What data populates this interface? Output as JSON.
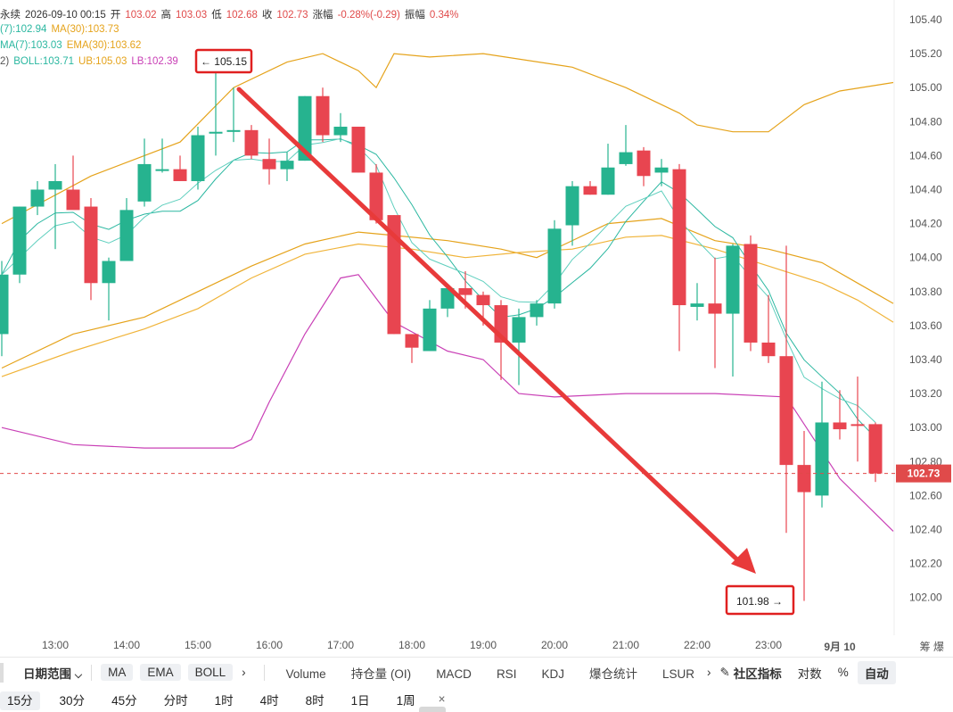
{
  "header": {
    "line1": [
      {
        "text": "永续",
        "color": "#333333"
      },
      {
        "text": "2026-09-10 00:15",
        "color": "#333333"
      },
      {
        "text": "开",
        "color": "#333333"
      },
      {
        "text": "103.02",
        "color": "#e04a4a"
      },
      {
        "text": "高",
        "color": "#333333"
      },
      {
        "text": "103.03",
        "color": "#e04a4a"
      },
      {
        "text": "低",
        "color": "#333333"
      },
      {
        "text": "102.68",
        "color": "#e04a4a"
      },
      {
        "text": "收",
        "color": "#333333"
      },
      {
        "text": "102.73",
        "color": "#e04a4a"
      },
      {
        "text": "涨幅",
        "color": "#333333"
      },
      {
        "text": "-0.28%(-0.29)",
        "color": "#e04a4a"
      },
      {
        "text": "振幅",
        "color": "#333333"
      },
      {
        "text": "0.34%",
        "color": "#e04a4a"
      }
    ],
    "line2": [
      {
        "text": "(7):102.94",
        "color": "#2ab7a0"
      },
      {
        "text": "MA(30):103.73",
        "color": "#e5a31b"
      }
    ],
    "line3": [
      {
        "text": "MA(7):103.03",
        "color": "#2ab7a0"
      },
      {
        "text": "EMA(30):103.62",
        "color": "#e5a31b"
      }
    ],
    "line4": [
      {
        "text": "2)",
        "color": "#555555"
      },
      {
        "text": "BOLL:103.71",
        "color": "#2ab7a0"
      },
      {
        "text": "UB:105.03",
        "color": "#e5a31b"
      },
      {
        "text": "LB:102.39",
        "color": "#c940b6"
      }
    ]
  },
  "chart_data": {
    "type": "candlestick",
    "x_ticks": [
      "13:00",
      "14:00",
      "15:00",
      "16:00",
      "17:00",
      "18:00",
      "19:00",
      "20:00",
      "21:00",
      "22:00",
      "23:00",
      "9月 10"
    ],
    "y_ticks": [
      "105.40",
      "105.20",
      "105.00",
      "104.80",
      "104.60",
      "104.40",
      "104.20",
      "104.00",
      "103.80",
      "103.60",
      "103.40",
      "103.20",
      "103.00",
      "102.80",
      "102.60",
      "102.40",
      "102.20",
      "102.00"
    ],
    "ylim": [
      101.8,
      105.5
    ],
    "candles": [
      {
        "o": 103.55,
        "h": 103.98,
        "l": 103.42,
        "c": 103.9
      },
      {
        "o": 103.9,
        "h": 104.3,
        "l": 103.85,
        "c": 104.3
      },
      {
        "o": 104.3,
        "h": 104.45,
        "l": 104.25,
        "c": 104.4
      },
      {
        "o": 104.4,
        "h": 104.55,
        "l": 104.05,
        "c": 104.45
      },
      {
        "o": 104.4,
        "h": 104.6,
        "l": 104.3,
        "c": 104.28
      },
      {
        "o": 104.3,
        "h": 104.35,
        "l": 103.75,
        "c": 103.85
      },
      {
        "o": 103.85,
        "h": 104.0,
        "l": 103.63,
        "c": 103.98
      },
      {
        "o": 103.98,
        "h": 104.35,
        "l": 103.98,
        "c": 104.28
      },
      {
        "o": 104.33,
        "h": 104.7,
        "l": 104.3,
        "c": 104.55
      },
      {
        "o": 104.52,
        "h": 104.7,
        "l": 104.5,
        "c": 104.52
      },
      {
        "o": 104.52,
        "h": 104.6,
        "l": 104.45,
        "c": 104.45
      },
      {
        "o": 104.45,
        "h": 104.77,
        "l": 104.4,
        "c": 104.72
      },
      {
        "o": 104.74,
        "h": 105.15,
        "l": 104.6,
        "c": 104.74
      },
      {
        "o": 104.75,
        "h": 105.0,
        "l": 104.68,
        "c": 104.75
      },
      {
        "o": 104.75,
        "h": 104.78,
        "l": 104.58,
        "c": 104.6
      },
      {
        "o": 104.58,
        "h": 104.7,
        "l": 104.43,
        "c": 104.52
      },
      {
        "o": 104.52,
        "h": 104.62,
        "l": 104.45,
        "c": 104.57
      },
      {
        "o": 104.57,
        "h": 104.95,
        "l": 104.57,
        "c": 104.95
      },
      {
        "o": 104.95,
        "h": 105.0,
        "l": 104.68,
        "c": 104.72
      },
      {
        "o": 104.72,
        "h": 104.85,
        "l": 104.68,
        "c": 104.77
      },
      {
        "o": 104.77,
        "h": 104.77,
        "l": 104.5,
        "c": 104.5
      },
      {
        "o": 104.5,
        "h": 104.55,
        "l": 104.2,
        "c": 104.22
      },
      {
        "o": 104.25,
        "h": 104.25,
        "l": 103.55,
        "c": 103.55
      },
      {
        "o": 103.55,
        "h": 103.55,
        "l": 103.38,
        "c": 103.47
      },
      {
        "o": 103.45,
        "h": 103.75,
        "l": 103.45,
        "c": 103.7
      },
      {
        "o": 103.7,
        "h": 103.83,
        "l": 103.65,
        "c": 103.82
      },
      {
        "o": 103.82,
        "h": 103.92,
        "l": 103.7,
        "c": 103.78
      },
      {
        "o": 103.78,
        "h": 103.8,
        "l": 103.6,
        "c": 103.72
      },
      {
        "o": 103.72,
        "h": 103.75,
        "l": 103.28,
        "c": 103.5
      },
      {
        "o": 103.5,
        "h": 103.7,
        "l": 103.25,
        "c": 103.65
      },
      {
        "o": 103.65,
        "h": 103.75,
        "l": 103.6,
        "c": 103.73
      },
      {
        "o": 103.73,
        "h": 104.22,
        "l": 103.7,
        "c": 104.17
      },
      {
        "o": 104.19,
        "h": 104.45,
        "l": 104.07,
        "c": 104.42
      },
      {
        "o": 104.42,
        "h": 104.45,
        "l": 104.37,
        "c": 104.37
      },
      {
        "o": 104.37,
        "h": 104.67,
        "l": 104.37,
        "c": 104.53
      },
      {
        "o": 104.55,
        "h": 104.78,
        "l": 104.54,
        "c": 104.62
      },
      {
        "o": 104.63,
        "h": 104.65,
        "l": 104.42,
        "c": 104.48
      },
      {
        "o": 104.5,
        "h": 104.58,
        "l": 104.42,
        "c": 104.53
      },
      {
        "o": 104.52,
        "h": 104.55,
        "l": 103.45,
        "c": 103.72
      },
      {
        "o": 103.71,
        "h": 103.85,
        "l": 103.63,
        "c": 103.73
      },
      {
        "o": 103.73,
        "h": 104.0,
        "l": 103.35,
        "c": 103.67
      },
      {
        "o": 103.67,
        "h": 104.08,
        "l": 103.3,
        "c": 104.07
      },
      {
        "o": 104.08,
        "h": 104.13,
        "l": 103.45,
        "c": 103.5
      },
      {
        "o": 103.5,
        "h": 103.78,
        "l": 103.38,
        "c": 103.42
      },
      {
        "o": 103.42,
        "h": 104.07,
        "l": 102.38,
        "c": 102.78
      },
      {
        "o": 102.78,
        "h": 102.98,
        "l": 101.98,
        "c": 102.62
      },
      {
        "o": 102.6,
        "h": 103.27,
        "l": 102.53,
        "c": 103.03
      },
      {
        "o": 103.03,
        "h": 103.22,
        "l": 102.93,
        "c": 102.99
      },
      {
        "o": 103.02,
        "h": 103.3,
        "l": 102.8,
        "c": 103.01
      },
      {
        "o": 103.02,
        "h": 103.03,
        "l": 102.68,
        "c": 102.73
      }
    ],
    "series": [
      {
        "name": "UB",
        "color": "#e5a31b"
      },
      {
        "name": "LB",
        "color": "#c940b6"
      },
      {
        "name": "MA(30)",
        "color": "#e5a31b"
      },
      {
        "name": "EMA(30)",
        "color": "#e5a31b"
      },
      {
        "name": "MA(7)",
        "color": "#2ab7a0"
      }
    ],
    "ub": [
      [
        0,
        104.2
      ],
      [
        5,
        104.48
      ],
      [
        10,
        104.68
      ],
      [
        13,
        105.0
      ],
      [
        16,
        105.15
      ],
      [
        18,
        105.2
      ],
      [
        20,
        105.1
      ],
      [
        21,
        105.0
      ],
      [
        22,
        105.2
      ],
      [
        24,
        105.18
      ],
      [
        27,
        105.2
      ],
      [
        32,
        105.12
      ],
      [
        35,
        105.0
      ],
      [
        38,
        104.85
      ],
      [
        39,
        104.78
      ],
      [
        41,
        104.74
      ],
      [
        43,
        104.74
      ],
      [
        45,
        104.9
      ],
      [
        47,
        104.98
      ],
      [
        50,
        105.03
      ]
    ],
    "lb": [
      [
        0,
        103.0
      ],
      [
        4,
        102.9
      ],
      [
        8,
        102.88
      ],
      [
        13,
        102.88
      ],
      [
        14,
        102.93
      ],
      [
        15,
        103.15
      ],
      [
        17,
        103.55
      ],
      [
        19,
        103.88
      ],
      [
        20,
        103.9
      ],
      [
        22,
        103.62
      ],
      [
        25,
        103.45
      ],
      [
        27,
        103.4
      ],
      [
        29,
        103.2
      ],
      [
        31,
        103.18
      ],
      [
        35,
        103.2
      ],
      [
        40,
        103.2
      ],
      [
        44,
        103.18
      ],
      [
        47,
        102.7
      ],
      [
        50,
        102.39
      ]
    ],
    "ma30": [
      [
        0,
        103.35
      ],
      [
        4,
        103.55
      ],
      [
        8,
        103.65
      ],
      [
        11,
        103.8
      ],
      [
        14,
        103.95
      ],
      [
        17,
        104.08
      ],
      [
        20,
        104.15
      ],
      [
        22,
        104.13
      ],
      [
        25,
        104.1
      ],
      [
        28,
        104.05
      ],
      [
        30,
        104.0
      ],
      [
        34,
        104.2
      ],
      [
        37,
        104.23
      ],
      [
        40,
        104.1
      ],
      [
        43,
        104.05
      ],
      [
        46,
        103.97
      ],
      [
        48,
        103.85
      ],
      [
        50,
        103.73
      ]
    ],
    "ema30": [
      [
        0,
        103.3
      ],
      [
        4,
        103.45
      ],
      [
        8,
        103.58
      ],
      [
        11,
        103.7
      ],
      [
        14,
        103.88
      ],
      [
        17,
        104.02
      ],
      [
        20,
        104.08
      ],
      [
        23,
        104.05
      ],
      [
        26,
        104.0
      ],
      [
        29,
        104.03
      ],
      [
        32,
        104.05
      ],
      [
        35,
        104.12
      ],
      [
        37,
        104.13
      ],
      [
        40,
        104.05
      ],
      [
        43,
        103.95
      ],
      [
        46,
        103.85
      ],
      [
        48,
        103.75
      ],
      [
        50,
        103.62
      ]
    ]
  },
  "annotations": {
    "high_label": "← 105.15",
    "low_label": "101.98 →",
    "last_price": "102.73"
  },
  "xaxis_corner": "筹 爆",
  "toolbar1": {
    "date_range": "日期范围",
    "date_range_chevron": "⌵",
    "pills": [
      "MA",
      "EMA",
      "BOLL"
    ],
    "more1": "›",
    "indicators": [
      "Volume",
      "持仓量 (OI)",
      "MACD",
      "RSI",
      "KDJ",
      "爆仓统计",
      "LSUR"
    ],
    "more2": "›",
    "edit_icon": "✎",
    "community": "社区指标",
    "log": "对数",
    "percent": "%",
    "auto": "自动"
  },
  "toolbar2": {
    "timeframes": [
      "15分",
      "30分",
      "45分",
      "分时",
      "1时",
      "4时",
      "8时",
      "1日",
      "1周"
    ],
    "active": "15分",
    "close": "×"
  },
  "colors": {
    "up": "#26b38f",
    "down": "#e84550",
    "arrow": "#e83a3a",
    "last_price": "#e04a4a"
  }
}
